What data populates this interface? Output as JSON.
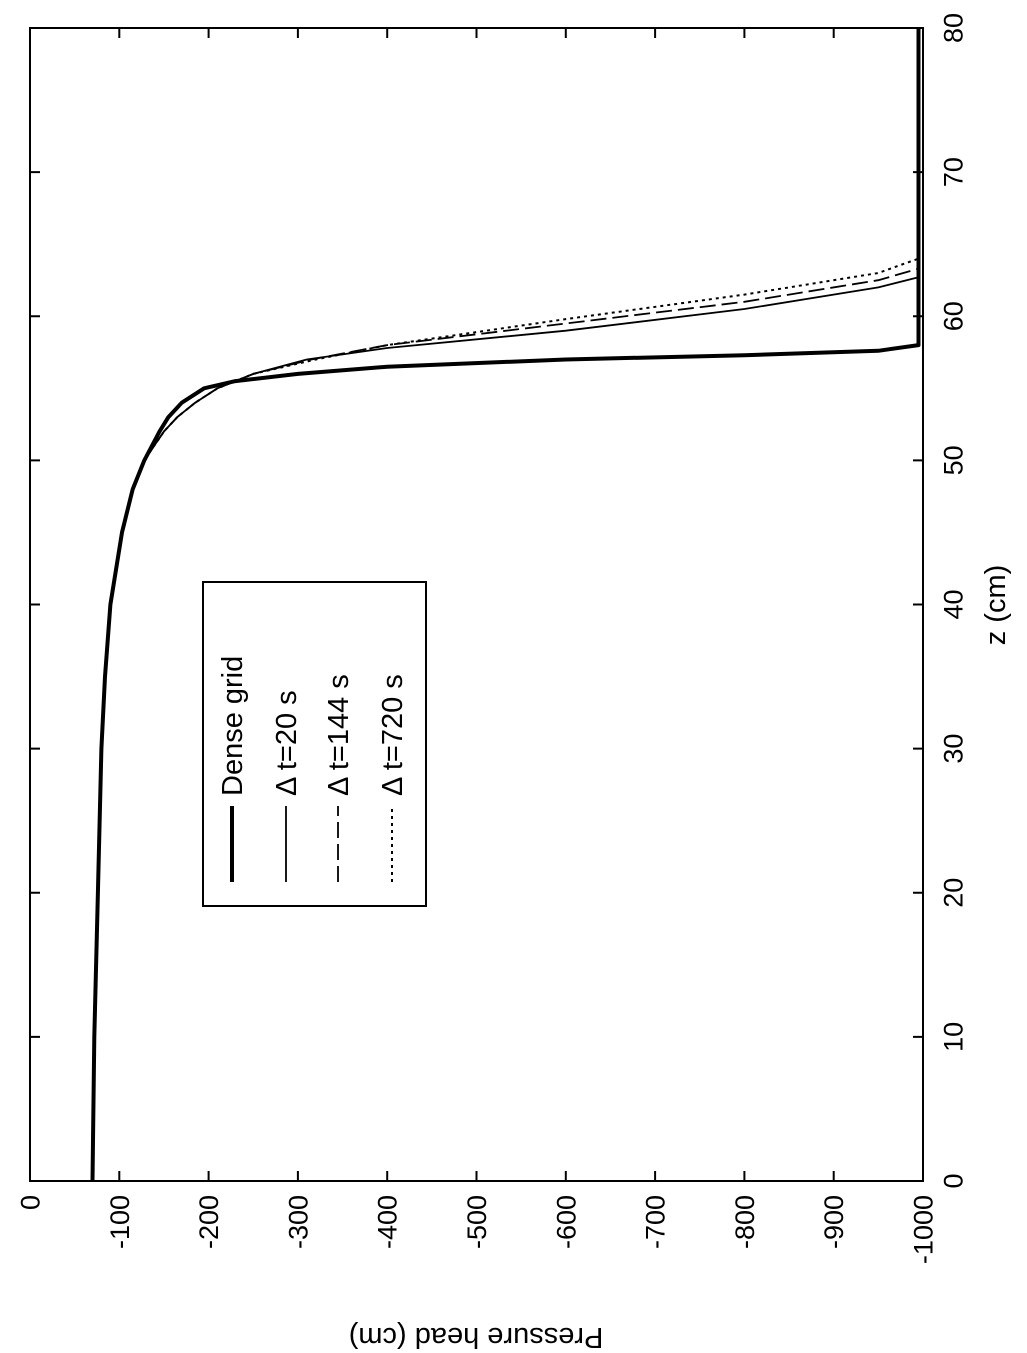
{
  "chart_data": {
    "type": "line",
    "orientation": "rotated 90 degrees clockwise",
    "xlabel": "z (cm)",
    "ylabel": "Pressure head (cm)",
    "xlim": [
      0,
      80
    ],
    "ylim": [
      -1000,
      0
    ],
    "x_ticks": [
      "0",
      "10",
      "20",
      "30",
      "40",
      "50",
      "60",
      "70",
      "80"
    ],
    "y_ticks": [
      "0",
      "-100",
      "-200",
      "-300",
      "-400",
      "-500",
      "-600",
      "-700",
      "-800",
      "-900",
      "-1000"
    ],
    "grid": false,
    "legend_position": "inside, left-center",
    "legend": [
      "Dense grid",
      "Δ t=20 s",
      "Δ t=144 s",
      "Δ t=720 s"
    ],
    "series": [
      {
        "name": "Dense grid",
        "style": "thick-solid",
        "points": [
          [
            0,
            -70
          ],
          [
            10,
            -72
          ],
          [
            20,
            -76
          ],
          [
            30,
            -80
          ],
          [
            35,
            -84
          ],
          [
            40,
            -90
          ],
          [
            45,
            -103
          ],
          [
            48,
            -115
          ],
          [
            50,
            -128
          ],
          [
            52,
            -145
          ],
          [
            53,
            -155
          ],
          [
            54,
            -170
          ],
          [
            55,
            -195
          ],
          [
            55.5,
            -230
          ],
          [
            56,
            -300
          ],
          [
            56.5,
            -400
          ],
          [
            57,
            -600
          ],
          [
            57.3,
            -800
          ],
          [
            57.6,
            -950
          ],
          [
            58,
            -995
          ],
          [
            62,
            -995
          ],
          [
            70,
            -995
          ],
          [
            80,
            -995
          ]
        ]
      },
      {
        "name": "Δ t=20 s",
        "style": "thin-solid",
        "points": [
          [
            0,
            -70
          ],
          [
            10,
            -72
          ],
          [
            20,
            -76
          ],
          [
            30,
            -80
          ],
          [
            35,
            -84
          ],
          [
            40,
            -90
          ],
          [
            45,
            -103
          ],
          [
            48,
            -115
          ],
          [
            50,
            -128
          ],
          [
            52,
            -150
          ],
          [
            53,
            -165
          ],
          [
            54,
            -185
          ],
          [
            55,
            -210
          ],
          [
            56,
            -250
          ],
          [
            57,
            -310
          ],
          [
            57.8,
            -400
          ],
          [
            59,
            -600
          ],
          [
            60.5,
            -800
          ],
          [
            62,
            -950
          ],
          [
            62.7,
            -995
          ],
          [
            70,
            -995
          ],
          [
            80,
            -995
          ]
        ]
      },
      {
        "name": "Δ t=144 s",
        "style": "dashed",
        "points": [
          [
            0,
            -70
          ],
          [
            10,
            -72
          ],
          [
            20,
            -76
          ],
          [
            30,
            -80
          ],
          [
            35,
            -84
          ],
          [
            40,
            -90
          ],
          [
            45,
            -103
          ],
          [
            48,
            -115
          ],
          [
            50,
            -128
          ],
          [
            52,
            -150
          ],
          [
            53,
            -165
          ],
          [
            54,
            -185
          ],
          [
            55,
            -210
          ],
          [
            56,
            -250
          ],
          [
            57,
            -315
          ],
          [
            58,
            -400
          ],
          [
            59.5,
            -600
          ],
          [
            61,
            -800
          ],
          [
            62.5,
            -950
          ],
          [
            63.3,
            -995
          ],
          [
            70,
            -995
          ],
          [
            80,
            -995
          ]
        ]
      },
      {
        "name": "Δ t=720 s",
        "style": "dotted",
        "points": [
          [
            0,
            -70
          ],
          [
            10,
            -72
          ],
          [
            20,
            -76
          ],
          [
            30,
            -80
          ],
          [
            35,
            -84
          ],
          [
            40,
            -90
          ],
          [
            45,
            -103
          ],
          [
            48,
            -115
          ],
          [
            50,
            -128
          ],
          [
            52,
            -150
          ],
          [
            53,
            -165
          ],
          [
            54,
            -185
          ],
          [
            55,
            -210
          ],
          [
            56,
            -250
          ],
          [
            57,
            -320
          ],
          [
            58,
            -400
          ],
          [
            59.8,
            -600
          ],
          [
            61.5,
            -800
          ],
          [
            63,
            -950
          ],
          [
            64,
            -995
          ],
          [
            70,
            -995
          ],
          [
            80,
            -995
          ]
        ]
      }
    ]
  }
}
